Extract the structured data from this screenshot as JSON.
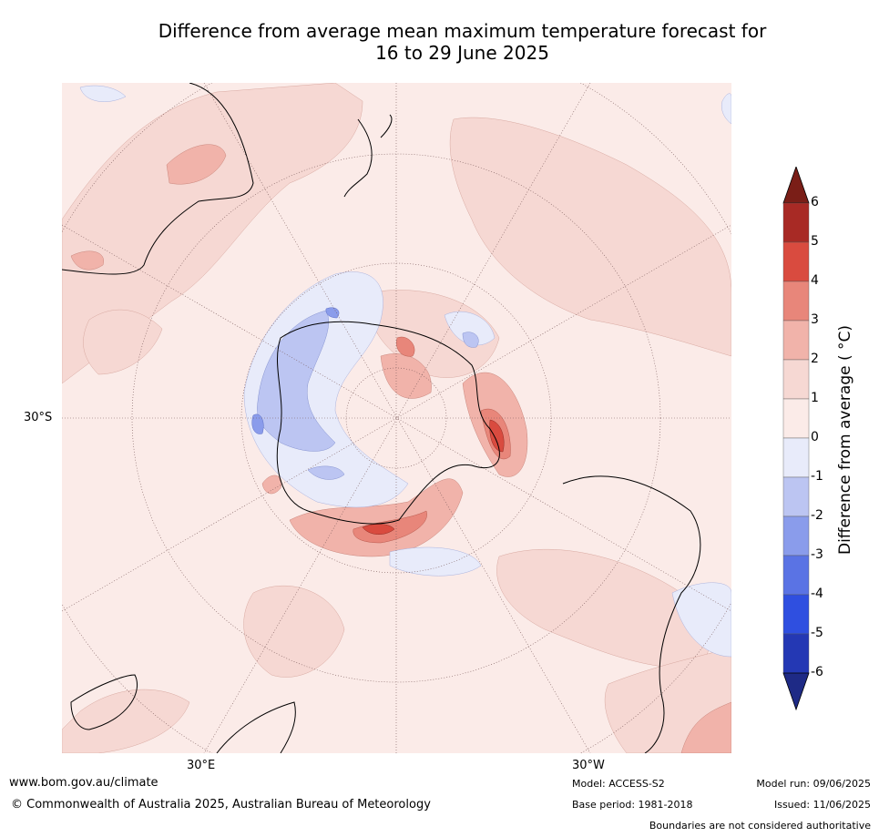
{
  "title_line1": "Difference from average mean maximum temperature forecast for",
  "title_line2": "16 to 29 June 2025",
  "axis_labels": {
    "lat": "30°S",
    "lon_east": "30°E",
    "lon_west": "30°W"
  },
  "colorbar": {
    "title": "Difference from average ( °C)",
    "ticks": [
      "6",
      "5",
      "4",
      "3",
      "2",
      "1",
      "0",
      "-1",
      "-2",
      "-3",
      "-4",
      "-5",
      "-6"
    ],
    "colors": [
      "#7a1e17",
      "#a82a25",
      "#d94b3f",
      "#e8867a",
      "#f1b3aa",
      "#f6d8d3",
      "#fbebe8",
      "#e8ebfa",
      "#bcc5f2",
      "#8a9ceb",
      "#5a73e4",
      "#2f4fe0",
      "#2438b4",
      "#1e2a86"
    ]
  },
  "footer": {
    "url": "www.bom.gov.au/climate",
    "copyright": "© Commonwealth of Australia 2025, Australian Bureau of Meteorology",
    "model": "Model: ACCESS-S2",
    "base_period": "Base period: 1981-2018",
    "model_run": "Model run: 09/06/2025",
    "issued": "Issued: 11/06/2025",
    "disclaimer": "Boundaries are not considered authoritative"
  }
}
